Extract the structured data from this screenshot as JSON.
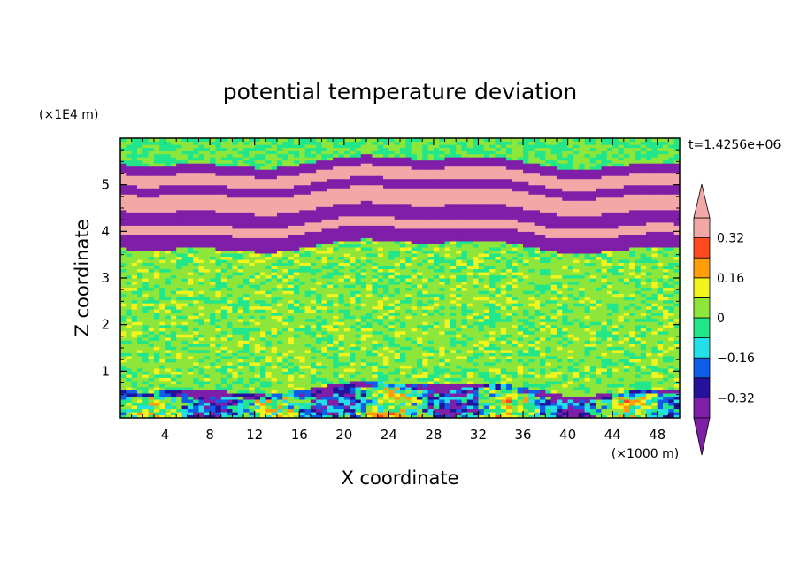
{
  "chart_data": {
    "type": "heatmap",
    "title": "potential temperature deviation",
    "xlabel": "X coordinate",
    "ylabel": "Z coordinate",
    "x_unit": "(×1000 m)",
    "y_unit": "(×1E4 m)",
    "time_label": "t=1.4256e+06",
    "xlim": [
      0,
      50
    ],
    "ylim": [
      0,
      6
    ],
    "x_ticks": [
      "4",
      "8",
      "12",
      "16",
      "20",
      "24",
      "28",
      "32",
      "36",
      "40",
      "44",
      "48"
    ],
    "x_tick_values": [
      4,
      8,
      12,
      16,
      20,
      24,
      28,
      32,
      36,
      40,
      44,
      48
    ],
    "y_ticks": [
      "1",
      "2",
      "3",
      "4",
      "5"
    ],
    "y_tick_values": [
      1,
      2,
      3,
      4,
      5
    ],
    "colorbar": {
      "levels": [
        -0.4,
        -0.32,
        -0.24,
        -0.16,
        -0.08,
        0,
        0.08,
        0.16,
        0.24,
        0.32,
        0.4
      ],
      "tick_labels": [
        "0.32",
        "0.16",
        "0",
        "−0.16",
        "−0.32"
      ],
      "tick_values": [
        0.32,
        0.16,
        0,
        -0.16,
        -0.32
      ],
      "colors": [
        "#7f1fa8",
        "#24129a",
        "#0d5ee8",
        "#22dfe8",
        "#22e68a",
        "#8ee63a",
        "#f3f31e",
        "#ff9d0a",
        "#ff4a1e",
        "#f3a8a8"
      ],
      "over_color": "#f3a8a8",
      "under_color": "#7f1fa8"
    },
    "bands": [
      {
        "z_range": [
          5.55,
          6.0
        ],
        "mean_value": 0.0
      },
      {
        "z_range": [
          5.3,
          5.5
        ],
        "mean_value": -0.45
      },
      {
        "z_range": [
          5.05,
          5.3
        ],
        "mean_value": 0.45
      },
      {
        "z_range": [
          4.85,
          5.05
        ],
        "mean_value": -0.45
      },
      {
        "z_range": [
          4.5,
          4.85
        ],
        "mean_value": 0.45
      },
      {
        "z_range": [
          4.2,
          4.5
        ],
        "mean_value": -0.45
      },
      {
        "z_range": [
          4.0,
          4.2
        ],
        "mean_value": 0.45
      },
      {
        "z_range": [
          3.7,
          4.0
        ],
        "mean_value": -0.45
      },
      {
        "z_range": [
          0.65,
          3.7
        ],
        "mean_value": 0.03
      },
      {
        "z_range": [
          0.55,
          0.65
        ],
        "mean_value": -0.35
      },
      {
        "z_range": [
          0.0,
          0.55
        ],
        "mean_value": -0.1
      }
    ]
  }
}
